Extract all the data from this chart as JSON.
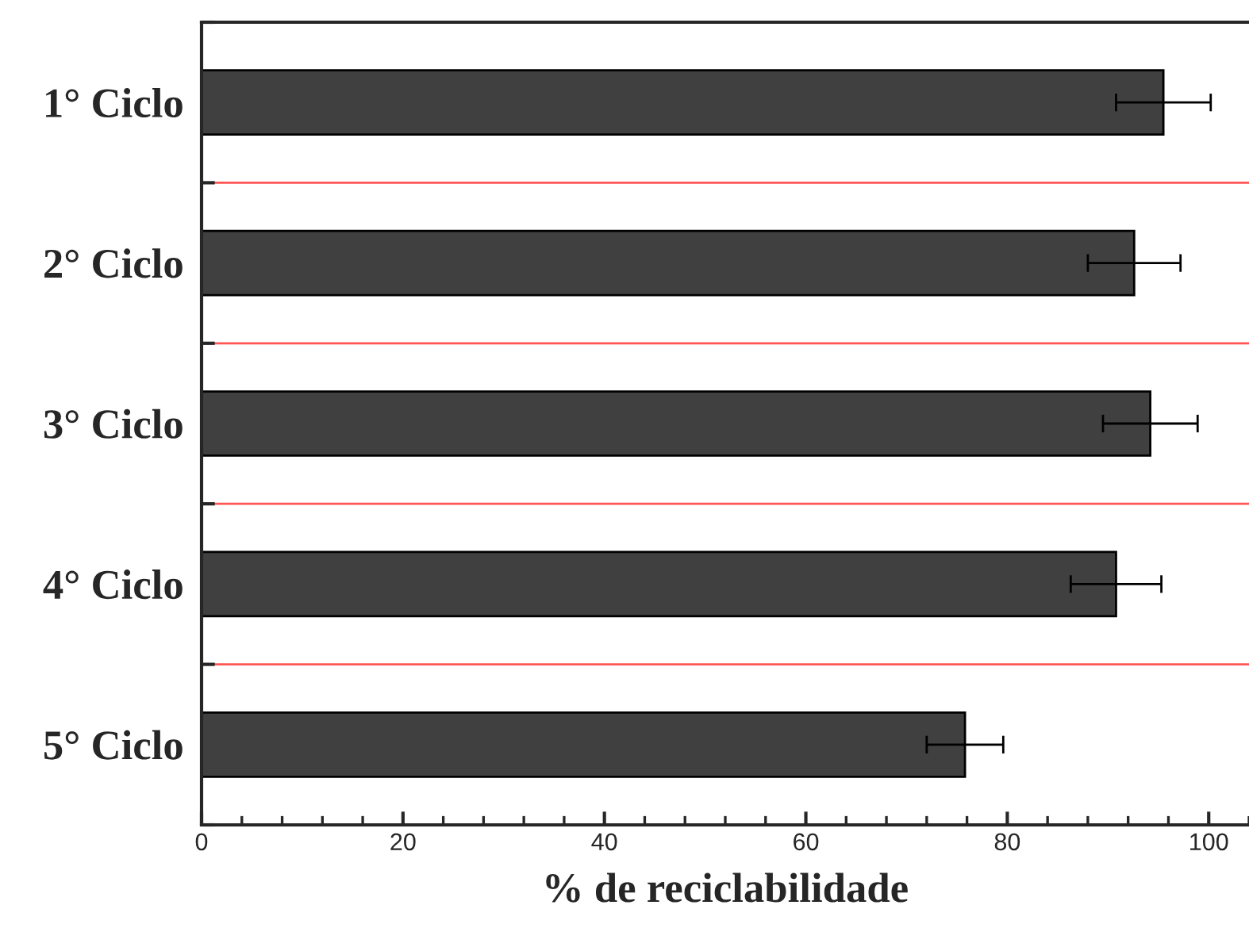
{
  "chart_data": {
    "type": "bar",
    "orientation": "horizontal",
    "xlabel": "% de reciclabilidade",
    "categories": [
      "1° Ciclo",
      "2° Ciclo",
      "3° Ciclo",
      "4° Ciclo",
      "5° Ciclo"
    ],
    "values": [
      95.5,
      92.6,
      94.2,
      90.8,
      75.8
    ],
    "errors": [
      4.7,
      4.6,
      4.7,
      4.5,
      3.8
    ],
    "color": "#404040",
    "xlim": [
      0,
      104
    ],
    "xticks": [
      0,
      20,
      40,
      60,
      80,
      100
    ],
    "grid": "y"
  }
}
